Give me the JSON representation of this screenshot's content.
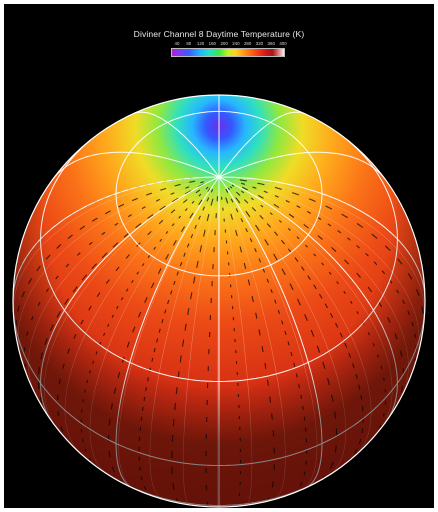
{
  "figure": {
    "title": "Diviner Channel 8 Daytime Temperature (K)",
    "colorbar": {
      "ticks": [
        "40",
        "80",
        "120",
        "160",
        "200",
        "240",
        "280",
        "320",
        "360",
        "400"
      ],
      "min": 40,
      "max": 400
    },
    "colors": {
      "background": "#000000",
      "graticule": "#ffffff",
      "pole_cold": "#6f33e8",
      "mid_latitude": "#ffb21c",
      "equator_hot": "#cc2a12",
      "data_gap": "#120606"
    }
  }
}
